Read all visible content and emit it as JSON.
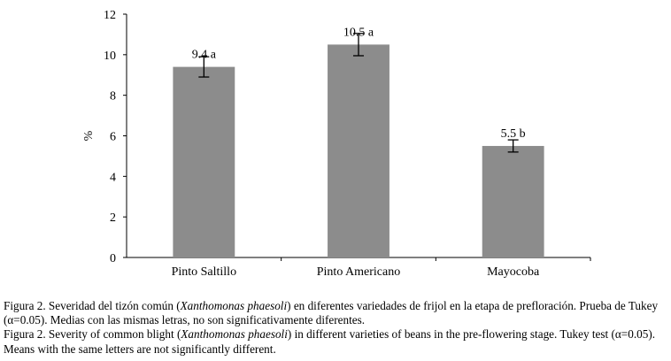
{
  "chart_data": {
    "type": "bar",
    "categories": [
      "Pinto Saltillo",
      "Pinto Americano",
      "Mayocoba"
    ],
    "values": [
      9.4,
      10.5,
      5.5
    ],
    "error": [
      0.5,
      0.55,
      0.3
    ],
    "data_labels": [
      "9.4 a",
      "10.5 a",
      "5.5 b"
    ],
    "ylabel": "%",
    "ylim": [
      0,
      12
    ],
    "yticks": [
      "0",
      "2",
      "4",
      "6",
      "8",
      "10",
      "12"
    ],
    "bar_color": "#8c8c8c",
    "grid": false
  },
  "caption": {
    "es_prefix": "Figura 2. Severidad del tizón común (",
    "es_species": "Xanthomonas phaesoli",
    "es_suffix": ") en diferentes variedades de frijol en la etapa de prefloración. Prueba de Tukey (α=0.05). Medias con las mismas letras, no son significativamente diferentes.",
    "en_prefix": "Figura  2. Severity of common blight (",
    "en_species": "Xanthomonas phaesoli",
    "en_suffix": ") in different varieties of beans in the pre-flowering stage. Tukey test (α=0.05). Means with the same letters are not significantly different."
  }
}
